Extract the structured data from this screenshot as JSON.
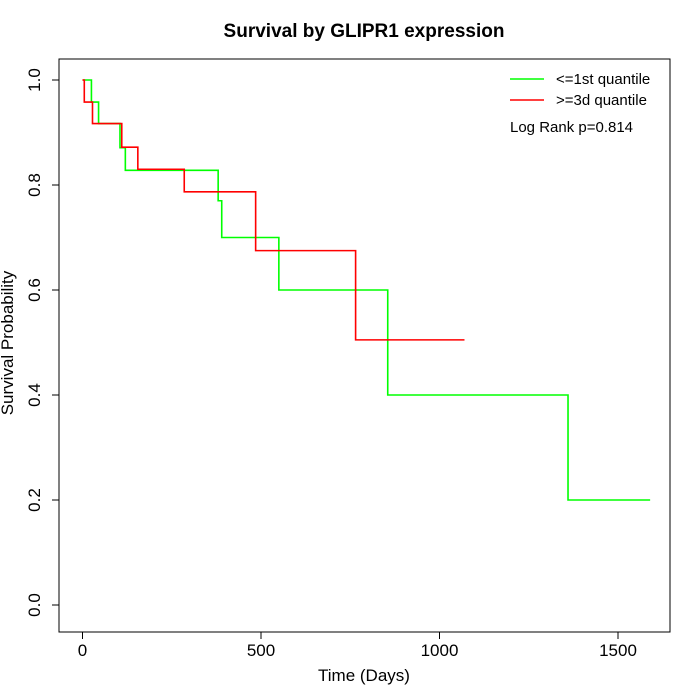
{
  "chart_data": {
    "type": "line",
    "title": "Survival by GLIPR1 expression",
    "xlabel": "Time (Days)",
    "ylabel": "Survival Probability",
    "xlim": [
      0,
      1600
    ],
    "ylim": [
      0,
      1
    ],
    "x_ticks": [
      0,
      500,
      1000,
      1500
    ],
    "y_ticks": [
      0.0,
      0.2,
      0.4,
      0.6,
      0.8,
      1.0
    ],
    "x_tick_labels": [
      "0",
      "500",
      "1000",
      "1500"
    ],
    "y_tick_labels": [
      "0.0",
      "0.2",
      "0.4",
      "0.6",
      "0.8",
      "1.0"
    ],
    "grid": false,
    "legend_position": "top-right",
    "annotation": "Log Rank p=0.814",
    "series": [
      {
        "name": "<=1st quantile",
        "color": "#00ff00",
        "step": true,
        "x": [
          0,
          25,
          45,
          105,
          120,
          380,
          390,
          550,
          855,
          1360,
          1590
        ],
        "y": [
          1.0,
          0.958,
          0.917,
          0.871,
          0.828,
          0.77,
          0.7,
          0.6,
          0.4,
          0.2,
          0.2
        ]
      },
      {
        "name": ">=3d quantile",
        "color": "#ff0000",
        "step": true,
        "x": [
          0,
          5,
          28,
          110,
          155,
          285,
          485,
          765,
          1070
        ],
        "y": [
          1.0,
          0.958,
          0.917,
          0.872,
          0.83,
          0.787,
          0.675,
          0.505,
          0.505
        ]
      }
    ]
  }
}
